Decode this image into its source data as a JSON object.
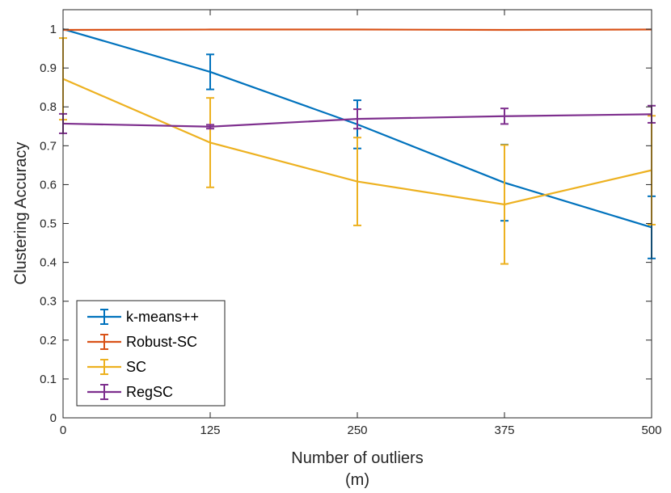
{
  "chart_data": {
    "type": "line",
    "title": "",
    "xlabel": "Number of outliers",
    "xlabel_line2": "(m)",
    "ylabel": "Clustering Accuracy",
    "x": [
      0,
      125,
      250,
      375,
      500
    ],
    "xlim": [
      0,
      500
    ],
    "ylim": [
      0,
      1.05
    ],
    "xticks": [
      0,
      125,
      250,
      375,
      500
    ],
    "yticks": [
      0,
      0.1,
      0.2,
      0.3,
      0.4,
      0.5,
      0.6,
      0.7,
      0.8,
      0.9,
      1
    ],
    "xtick_labels": [
      "0",
      "125",
      "250",
      "375",
      "500"
    ],
    "ytick_labels": [
      "0",
      "0.1",
      "0.2",
      "0.3",
      "0.4",
      "0.5",
      "0.6",
      "0.7",
      "0.8",
      "0.9",
      "1"
    ],
    "grid": false,
    "legend_position": "bottom-left",
    "error_bars": true,
    "series": [
      {
        "name": "k-means++",
        "color": "#0072BD",
        "values": [
          1.0,
          0.89,
          0.755,
          0.605,
          0.49
        ],
        "errors": [
          0.0,
          0.045,
          0.062,
          0.098,
          0.08
        ]
      },
      {
        "name": "Robust-SC",
        "color": "#D95319",
        "values": [
          0.998,
          0.999,
          0.999,
          0.998,
          0.999
        ],
        "errors": [
          0.0,
          0.0,
          0.0,
          0.0,
          0.0
        ]
      },
      {
        "name": "SC",
        "color": "#EDB120",
        "values": [
          0.872,
          0.708,
          0.608,
          0.549,
          0.637
        ],
        "errors": [
          0.105,
          0.115,
          0.113,
          0.153,
          0.14
        ]
      },
      {
        "name": "RegSC",
        "color": "#7E2F8E",
        "values": [
          0.757,
          0.749,
          0.769,
          0.776,
          0.781
        ],
        "errors": [
          0.025,
          0.005,
          0.025,
          0.02,
          0.022
        ]
      }
    ]
  }
}
